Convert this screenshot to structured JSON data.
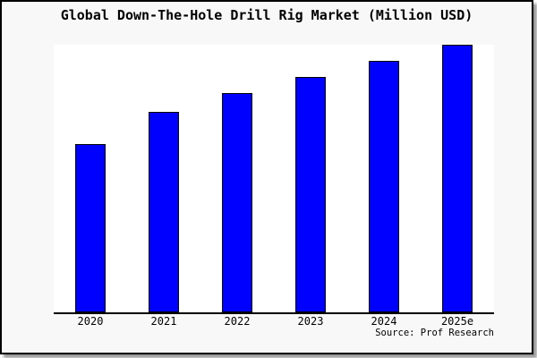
{
  "chart_data": {
    "type": "bar",
    "title": "Global Down-The-Hole Drill Rig Market (Million USD)",
    "categories": [
      "2020",
      "2021",
      "2022",
      "2023",
      "2024",
      "2025e"
    ],
    "values": [
      63,
      75,
      82,
      88,
      94,
      100
    ],
    "xlabel": "",
    "ylabel": "",
    "ylim": [
      0,
      100
    ],
    "grid": false,
    "legend_position": "none",
    "y_tick_labels_visible": false,
    "value_scale": "relative estimate, percent of tallest bar; chart shows no y-axis tick labels"
  },
  "source": "Source: Prof Research",
  "colors": {
    "bar_fill": "#0000ff",
    "bar_border": "#000000",
    "plot_background": "#ffffff",
    "canvas_background": "#f8f8f8",
    "frame_border": "#000000",
    "shadow": "#999999",
    "text": "#000000"
  }
}
